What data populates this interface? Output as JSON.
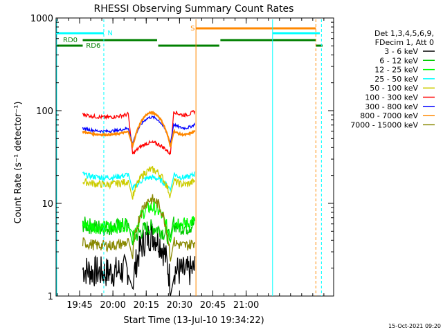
{
  "chart_data": {
    "type": "line",
    "title": "RHESSI Observing Summary Count Rates",
    "xlabel": "Start Time (13-Jul-10 19:34:22)",
    "ylabel": "Count Rate (s⁻¹ detector⁻¹)",
    "yscale": "log",
    "ylim": [
      1,
      1000
    ],
    "xlim_minutes": [
      0,
      125
    ],
    "x_ticks": [
      "19:45",
      "20:00",
      "20:15",
      "20:30",
      "20:45",
      "21:00"
    ],
    "y_ticks": [
      "1",
      "10",
      "100",
      "1000"
    ],
    "grid": false,
    "legend_position": "right",
    "legend_header": [
      "Det 1,3,4,5,6,9,",
      "FDecim 1, Att 0"
    ],
    "timestamp": "15-Oct-2021 09:20",
    "series": [
      {
        "name": "3 - 6 keV",
        "color": "#000000",
        "values": {
          "day1": 1.8,
          "day_mid_peak": 4.5,
          "day3": 1.8
        }
      },
      {
        "name": "6 - 12 keV",
        "color": "#00cc00",
        "values": {
          "day1": 5.5,
          "day_mid_peak": 5.5,
          "day3": 5.5
        }
      },
      {
        "name": "12 - 25 keV",
        "color": "#00ff00",
        "values": {
          "day1": 5.5,
          "day_mid_peak": 9,
          "day3": 6
        }
      },
      {
        "name": "25 - 50 keV",
        "color": "#00ffff",
        "values": {
          "day1": 19,
          "day_mid_peak": 19,
          "day3": 19
        }
      },
      {
        "name": "50 - 100 keV",
        "color": "#cccc00",
        "values": {
          "day1": 16,
          "day_mid_peak": 23,
          "day3": 16
        }
      },
      {
        "name": "100 - 300 keV",
        "color": "#ff0000",
        "values": {
          "day1": 85,
          "day_mid_peak": 45,
          "day3": 90
        }
      },
      {
        "name": "300 - 800 keV",
        "color": "#0000ff",
        "values": {
          "day1": 60,
          "day_mid_peak": 85,
          "day3": 65
        }
      },
      {
        "name": "800 - 7000 keV",
        "color": "#ff8800",
        "values": {
          "day1": 55,
          "day_mid_peak": 95,
          "day3": 55
        }
      },
      {
        "name": "7000 - 15000 keV",
        "color": "#888800",
        "values": {
          "day1": 3.5,
          "day_mid_peak": 11,
          "day3": 3.5
        }
      }
    ],
    "annotations": [
      {
        "label": "N",
        "color": "#00ffff"
      },
      {
        "label": "S",
        "color": "#ff8800"
      },
      {
        "label": "RD0",
        "color": "#008000"
      },
      {
        "label": "RD6",
        "color": "#008000"
      }
    ]
  }
}
